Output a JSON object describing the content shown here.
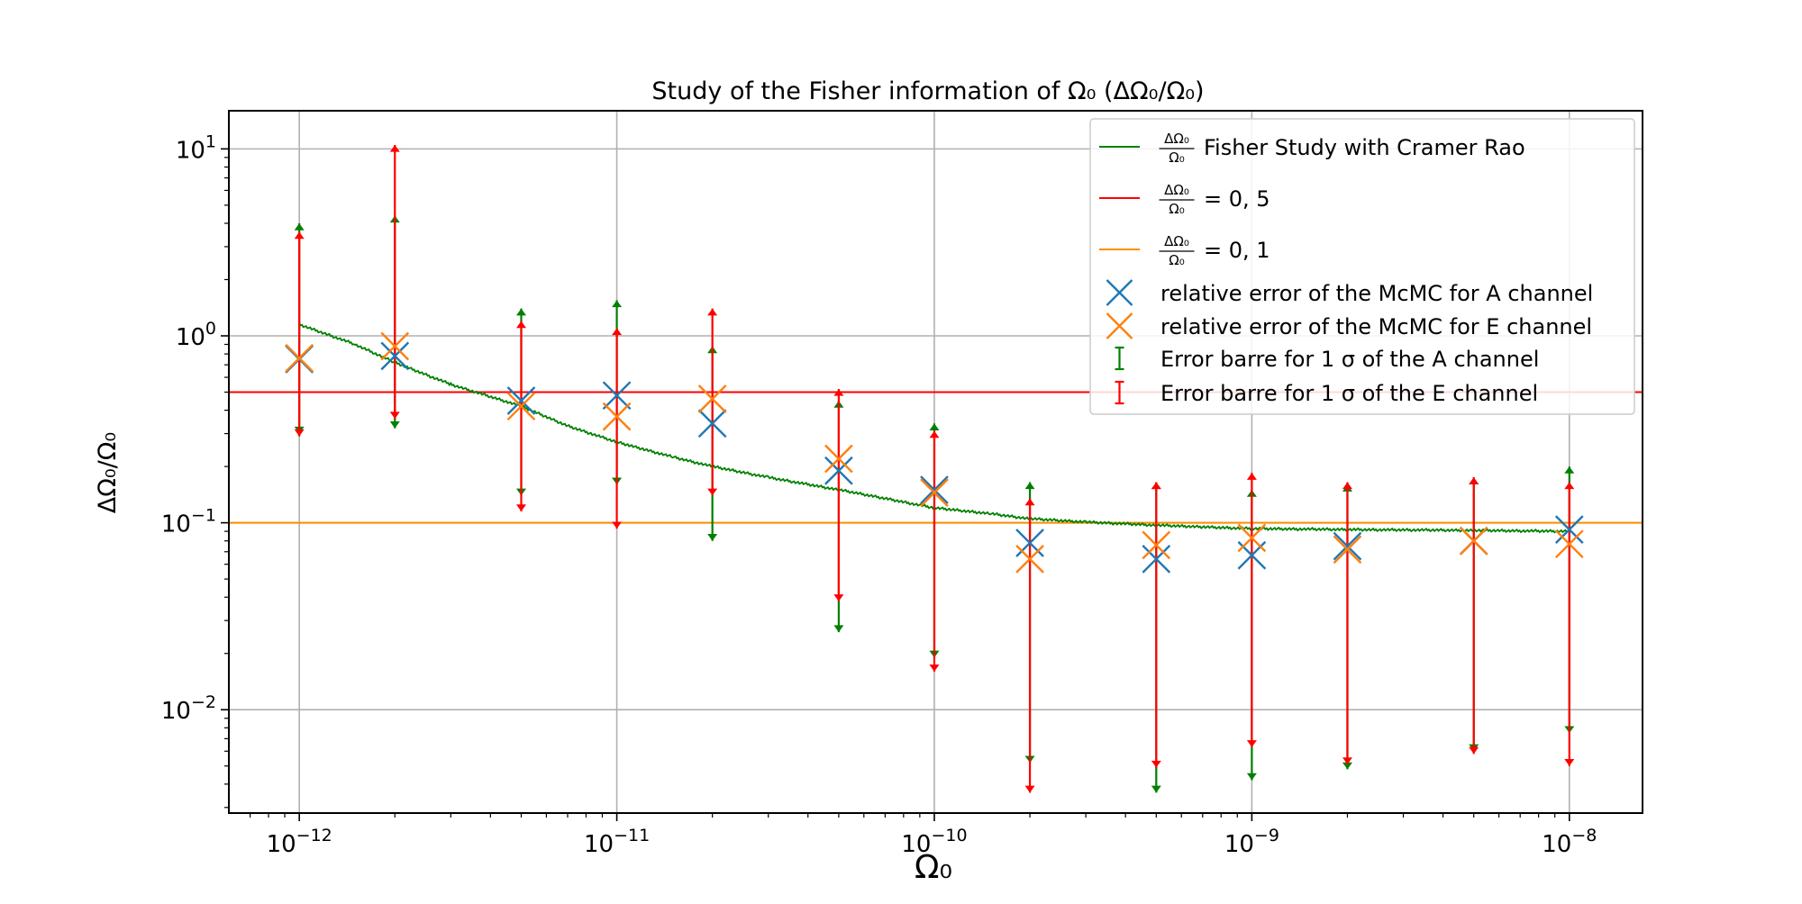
{
  "chart_data": {
    "type": "scatter",
    "title": "Study of the Fisher information of Ω₀ (ΔΩ₀/Ω₀)",
    "xlabel": "Ω₀",
    "ylabel": "ΔΩ₀/Ω₀",
    "xscale": "log",
    "yscale": "log",
    "xlim": [
      6e-13,
      1.7e-08
    ],
    "ylim": [
      0.0028,
      16
    ],
    "grid": true,
    "legend_position": "upper-right",
    "x_ticks": [
      {
        "value": 1e-12,
        "mantissa": "10",
        "exp": "−12"
      },
      {
        "value": 1e-11,
        "mantissa": "10",
        "exp": "−11"
      },
      {
        "value": 1e-10,
        "mantissa": "10",
        "exp": "−10"
      },
      {
        "value": 1e-09,
        "mantissa": "10",
        "exp": "−9"
      },
      {
        "value": 1e-08,
        "mantissa": "10",
        "exp": "−8"
      }
    ],
    "y_ticks": [
      {
        "value": 10,
        "mantissa": "10",
        "exp": "1"
      },
      {
        "value": 1,
        "mantissa": "10",
        "exp": "0"
      },
      {
        "value": 0.1,
        "mantissa": "10",
        "exp": "−1"
      },
      {
        "value": 0.01,
        "mantissa": "10",
        "exp": "−2"
      }
    ],
    "hlines": [
      {
        "name": "ΔΩ₀/Ω₀ = 0, 5",
        "y": 0.5,
        "color": "#ff0000"
      },
      {
        "name": "ΔΩ₀/Ω₀ = 0, 1",
        "y": 0.1,
        "color": "#ff8c00"
      }
    ],
    "fisher_curve": {
      "name": "ΔΩ₀/Ω₀ Fisher Study with Cramer Rao",
      "color": "#008000",
      "x": [
        1e-12,
        1.5e-12,
        2e-12,
        3e-12,
        5e-12,
        7e-12,
        1e-11,
        1.5e-11,
        2e-11,
        3e-11,
        5e-11,
        7e-11,
        1e-10,
        1.5e-10,
        2e-10,
        3e-10,
        5e-10,
        7e-10,
        1e-09,
        2e-09,
        5e-09,
        1e-08
      ],
      "y": [
        1.15,
        0.9,
        0.72,
        0.55,
        0.42,
        0.33,
        0.27,
        0.225,
        0.2,
        0.175,
        0.15,
        0.135,
        0.12,
        0.112,
        0.105,
        0.101,
        0.097,
        0.095,
        0.093,
        0.092,
        0.091,
        0.09
      ]
    },
    "series": [
      {
        "name": "relative error of the McMC for A channel",
        "color": "#1f77b4",
        "x": [
          1e-12,
          2e-12,
          5e-12,
          1e-11,
          2e-11,
          5e-11,
          1e-10,
          2e-10,
          5e-10,
          1e-09,
          2e-09,
          5e-09,
          1e-08
        ],
        "y": [
          0.75,
          0.78,
          0.45,
          0.48,
          0.34,
          0.19,
          0.15,
          0.078,
          0.064,
          0.067,
          0.075,
          0.08,
          0.092
        ]
      },
      {
        "name": "relative error of the McMC for E channel",
        "color": "#ff7f0e",
        "x": [
          1e-12,
          2e-12,
          5e-12,
          1e-11,
          2e-11,
          5e-11,
          1e-10,
          2e-10,
          5e-10,
          1e-09,
          2e-09,
          5e-09,
          1e-08
        ],
        "y": [
          0.76,
          0.88,
          0.42,
          0.37,
          0.46,
          0.22,
          0.145,
          0.064,
          0.076,
          0.083,
          0.072,
          0.08,
          0.077
        ]
      }
    ],
    "error_bars": [
      {
        "name": "Error barre for 1 σ of the A channel",
        "color": "#008000",
        "x": [
          1e-12,
          2e-12,
          5e-12,
          1e-11,
          2e-11,
          5e-11,
          1e-10,
          2e-10,
          5e-10,
          1e-09,
          2e-09,
          5e-09,
          1e-08
        ],
        "lower": [
          0.3,
          0.32,
          0.14,
          0.16,
          0.08,
          0.026,
          0.019,
          0.0052,
          0.0036,
          0.0042,
          0.0048,
          0.006,
          0.0075
        ],
        "upper": [
          4.0,
          4.4,
          1.4,
          1.55,
          0.88,
          0.45,
          0.34,
          0.165,
          0.165,
          0.15,
          0.16,
          0.175,
          0.2
        ]
      },
      {
        "name": "Error barre for 1 σ of the E channel",
        "color": "#ff0000",
        "x": [
          1e-12,
          2e-12,
          5e-12,
          1e-11,
          2e-11,
          5e-11,
          1e-10,
          2e-10,
          5e-10,
          1e-09,
          2e-09,
          5e-09,
          1e-08
        ],
        "lower": [
          0.29,
          0.36,
          0.115,
          0.093,
          0.14,
          0.038,
          0.016,
          0.0036,
          0.0049,
          0.0063,
          0.0051,
          0.0058,
          0.005
        ],
        "upper": [
          3.6,
          10.5,
          1.2,
          1.1,
          1.4,
          0.52,
          0.31,
          0.135,
          0.165,
          0.185,
          0.165,
          0.175,
          0.165
        ]
      }
    ],
    "legend": [
      {
        "kind": "line",
        "color": "#008000",
        "frac": "ΔΩ₀/Ω₀",
        "text": "Fisher Study with Cramer Rao"
      },
      {
        "kind": "line",
        "color": "#ff0000",
        "frac": "ΔΩ₀/Ω₀",
        "text": "= 0, 5"
      },
      {
        "kind": "line",
        "color": "#ff8c00",
        "frac": "ΔΩ₀/Ω₀",
        "text": "= 0, 1"
      },
      {
        "kind": "marker",
        "color": "#1f77b4",
        "text": "relative error of the McMC for A channel"
      },
      {
        "kind": "marker",
        "color": "#ff7f0e",
        "text": "relative error of the McMC for E channel"
      },
      {
        "kind": "errorbar",
        "color": "#008000",
        "text": "Error barre for 1 σ of the A channel"
      },
      {
        "kind": "errorbar",
        "color": "#ff0000",
        "text": "Error barre for 1 σ of the E channel"
      }
    ]
  }
}
